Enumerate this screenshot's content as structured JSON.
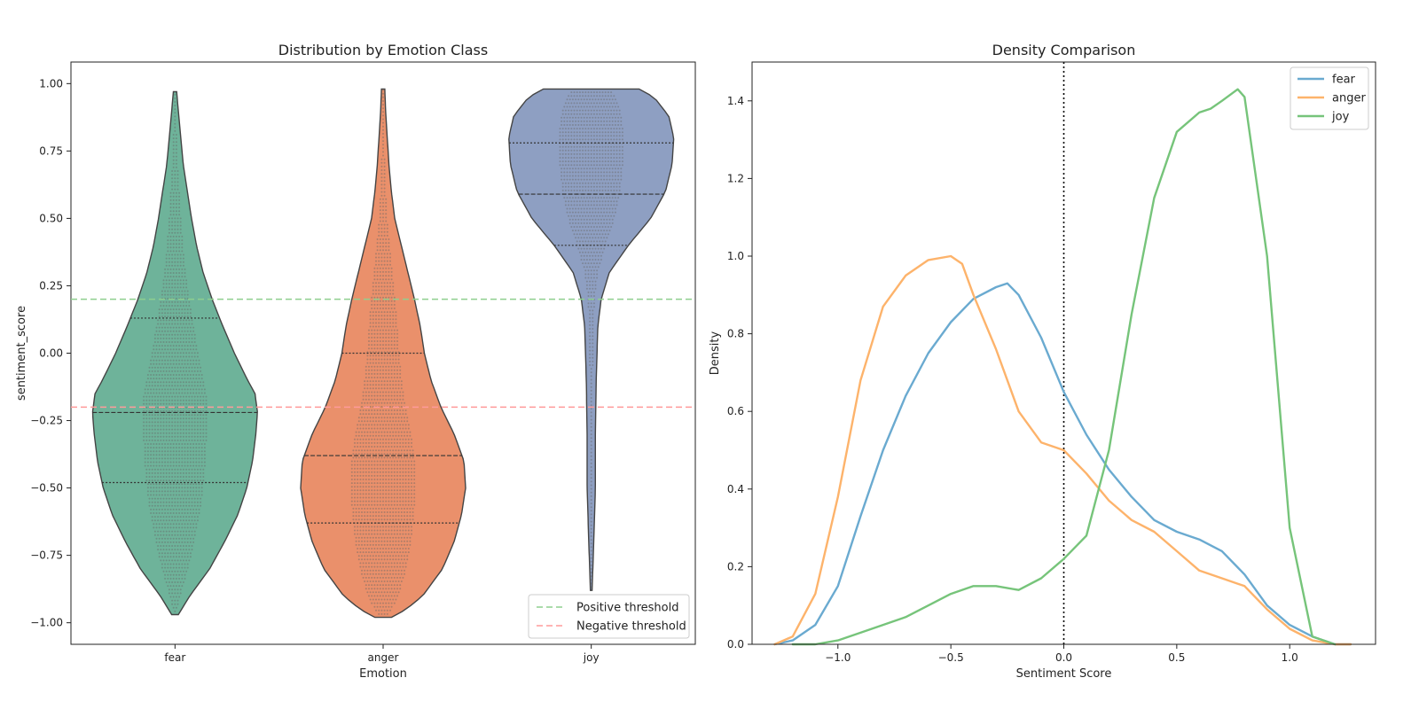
{
  "chart_data": [
    {
      "type": "violin",
      "title": "Distribution by Emotion Class",
      "xlabel": "Emotion",
      "ylabel": "sentiment_score",
      "categories": [
        "fear",
        "anger",
        "joy"
      ],
      "ylim": [
        -1.08,
        1.08
      ],
      "yticks": [
        -1.0,
        -0.75,
        -0.5,
        -0.25,
        0.0,
        0.25,
        0.5,
        0.75,
        1.0
      ],
      "ytick_labels": [
        "−1.00",
        "−0.75",
        "−0.50",
        "−0.25",
        "0.00",
        "0.25",
        "0.50",
        "0.75",
        "1.00"
      ],
      "colors": [
        "#6eb39a",
        "#ea906b",
        "#8e9fc2"
      ],
      "inner": "quartile",
      "swarm": true,
      "violins": [
        {
          "name": "fear",
          "range": [
            -0.97,
            0.97
          ],
          "quartiles": [
            -0.48,
            -0.22,
            0.13
          ],
          "profile": [
            [
              -0.97,
              0.04
            ],
            [
              -0.9,
              0.18
            ],
            [
              -0.8,
              0.42
            ],
            [
              -0.7,
              0.6
            ],
            [
              -0.6,
              0.76
            ],
            [
              -0.5,
              0.87
            ],
            [
              -0.4,
              0.94
            ],
            [
              -0.3,
              0.98
            ],
            [
              -0.22,
              1.0
            ],
            [
              -0.15,
              0.97
            ],
            [
              -0.1,
              0.88
            ],
            [
              0.0,
              0.72
            ],
            [
              0.1,
              0.58
            ],
            [
              0.2,
              0.45
            ],
            [
              0.3,
              0.34
            ],
            [
              0.4,
              0.26
            ],
            [
              0.5,
              0.2
            ],
            [
              0.6,
              0.15
            ],
            [
              0.7,
              0.1
            ],
            [
              0.8,
              0.07
            ],
            [
              0.9,
              0.04
            ],
            [
              0.97,
              0.02
            ]
          ]
        },
        {
          "name": "anger",
          "range": [
            -0.98,
            0.98
          ],
          "quartiles": [
            -0.63,
            -0.38,
            0.0
          ],
          "profile": [
            [
              -0.98,
              0.1
            ],
            [
              -0.95,
              0.28
            ],
            [
              -0.9,
              0.48
            ],
            [
              -0.8,
              0.72
            ],
            [
              -0.7,
              0.86
            ],
            [
              -0.6,
              0.95
            ],
            [
              -0.5,
              1.0
            ],
            [
              -0.4,
              0.98
            ],
            [
              -0.3,
              0.86
            ],
            [
              -0.2,
              0.7
            ],
            [
              -0.1,
              0.58
            ],
            [
              0.0,
              0.5
            ],
            [
              0.1,
              0.45
            ],
            [
              0.2,
              0.38
            ],
            [
              0.3,
              0.3
            ],
            [
              0.4,
              0.22
            ],
            [
              0.5,
              0.14
            ],
            [
              0.6,
              0.1
            ],
            [
              0.7,
              0.07
            ],
            [
              0.8,
              0.05
            ],
            [
              0.9,
              0.03
            ],
            [
              0.98,
              0.02
            ]
          ]
        },
        {
          "name": "joy",
          "range": [
            -0.88,
            0.98
          ],
          "quartiles": [
            0.4,
            0.59,
            0.78
          ],
          "profile": [
            [
              -0.88,
              0.01
            ],
            [
              -0.7,
              0.03
            ],
            [
              -0.5,
              0.05
            ],
            [
              -0.3,
              0.05
            ],
            [
              -0.1,
              0.06
            ],
            [
              0.0,
              0.07
            ],
            [
              0.1,
              0.08
            ],
            [
              0.2,
              0.12
            ],
            [
              0.3,
              0.22
            ],
            [
              0.4,
              0.45
            ],
            [
              0.5,
              0.72
            ],
            [
              0.6,
              0.9
            ],
            [
              0.7,
              0.98
            ],
            [
              0.8,
              1.0
            ],
            [
              0.88,
              0.94
            ],
            [
              0.95,
              0.76
            ],
            [
              0.98,
              0.58
            ]
          ]
        }
      ],
      "reference_lines": [
        {
          "label": "Positive threshold",
          "y": 0.2,
          "color": "#8fcf8f",
          "style": "dashed"
        },
        {
          "label": "Negative threshold",
          "y": -0.2,
          "color": "#ff9a9a",
          "style": "dashed"
        }
      ],
      "legend": {
        "location": "lower-right",
        "entries": [
          "Positive threshold",
          "Negative threshold"
        ]
      }
    },
    {
      "type": "line",
      "title": "Density Comparison",
      "xlabel": "Sentiment Score",
      "ylabel": "Density",
      "xlim": [
        -1.38,
        1.38
      ],
      "ylim": [
        0.0,
        1.5
      ],
      "xticks": [
        -1.0,
        -0.5,
        0.0,
        0.5,
        1.0
      ],
      "xtick_labels": [
        "−1.0",
        "−0.5",
        "0.0",
        "0.5",
        "1.0"
      ],
      "yticks": [
        0.0,
        0.2,
        0.4,
        0.6,
        0.8,
        1.0,
        1.2,
        1.4
      ],
      "ytick_labels": [
        "0.0",
        "0.2",
        "0.4",
        "0.6",
        "0.8",
        "1.0",
        "1.2",
        "1.4"
      ],
      "vertical_line": {
        "x": 0.0,
        "style": "dotted",
        "color": "#000000"
      },
      "legend": {
        "location": "top-right"
      },
      "series": [
        {
          "name": "fear",
          "color": "#6aaad0",
          "x": [
            -1.28,
            -1.2,
            -1.1,
            -1.0,
            -0.9,
            -0.8,
            -0.7,
            -0.6,
            -0.5,
            -0.4,
            -0.3,
            -0.25,
            -0.2,
            -0.1,
            0.0,
            0.1,
            0.2,
            0.3,
            0.4,
            0.5,
            0.6,
            0.7,
            0.8,
            0.9,
            1.0,
            1.1,
            1.2,
            1.27
          ],
          "y": [
            0.0,
            0.01,
            0.05,
            0.15,
            0.33,
            0.5,
            0.64,
            0.75,
            0.83,
            0.89,
            0.92,
            0.93,
            0.9,
            0.79,
            0.65,
            0.54,
            0.45,
            0.38,
            0.32,
            0.29,
            0.27,
            0.24,
            0.18,
            0.1,
            0.05,
            0.02,
            0.0,
            0.0
          ]
        },
        {
          "name": "anger",
          "color": "#fdb36b",
          "x": [
            -1.28,
            -1.2,
            -1.1,
            -1.0,
            -0.9,
            -0.8,
            -0.7,
            -0.6,
            -0.5,
            -0.45,
            -0.4,
            -0.3,
            -0.2,
            -0.1,
            0.0,
            0.1,
            0.2,
            0.3,
            0.4,
            0.5,
            0.6,
            0.7,
            0.8,
            0.9,
            1.0,
            1.1,
            1.2,
            1.27
          ],
          "y": [
            0.0,
            0.02,
            0.13,
            0.38,
            0.68,
            0.87,
            0.95,
            0.99,
            1.0,
            0.98,
            0.9,
            0.76,
            0.6,
            0.52,
            0.5,
            0.44,
            0.37,
            0.32,
            0.29,
            0.24,
            0.19,
            0.17,
            0.15,
            0.09,
            0.04,
            0.01,
            0.0,
            0.0
          ]
        },
        {
          "name": "joy",
          "color": "#76c47a",
          "x": [
            -1.2,
            -1.1,
            -1.0,
            -0.9,
            -0.8,
            -0.7,
            -0.6,
            -0.5,
            -0.4,
            -0.35,
            -0.3,
            -0.2,
            -0.1,
            0.0,
            0.1,
            0.2,
            0.3,
            0.4,
            0.5,
            0.6,
            0.65,
            0.7,
            0.77,
            0.8,
            0.9,
            1.0,
            1.1,
            1.2
          ],
          "y": [
            0.0,
            0.0,
            0.01,
            0.03,
            0.05,
            0.07,
            0.1,
            0.13,
            0.15,
            0.15,
            0.15,
            0.14,
            0.17,
            0.22,
            0.28,
            0.5,
            0.85,
            1.15,
            1.32,
            1.37,
            1.38,
            1.4,
            1.43,
            1.41,
            1.0,
            0.3,
            0.02,
            0.0
          ]
        }
      ]
    }
  ]
}
